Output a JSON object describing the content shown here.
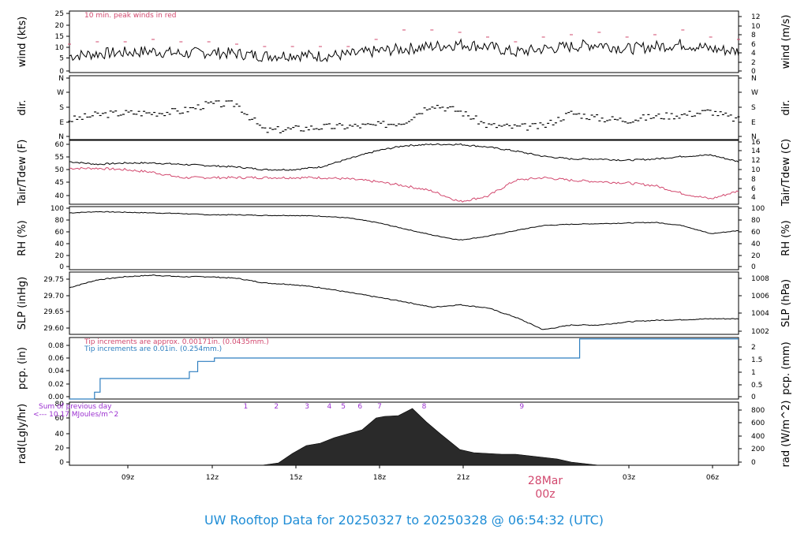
{
  "title": "UW Rooftop Data for 20250327  to  20250328 @ 06:54:32  (UTC)",
  "day_marker": {
    "date": "28Mar",
    "time": "00z"
  },
  "time_ticks": [
    "09z",
    "12z",
    "15z",
    "18z",
    "21z",
    "03z",
    "06z"
  ],
  "colors": {
    "title": "#1f8dd6",
    "day": "#d2486e",
    "peak": "#d2486e",
    "blue": "#2f7fc0",
    "purple": "#9b30d0",
    "line": "#000000"
  },
  "notes": {
    "peak": "10 min. peak winds in red",
    "tip_red": "Tip increments are approx. 0.00171in. (0.0435mm.)",
    "tip_blue": "Tip increments are 0.01in. (0.254mm.)",
    "sum_line1": "Sum of previous day",
    "sum_line2": "<--- 10.17 MJoules/m^2"
  },
  "panels": {
    "wind": {
      "left_label": "wind (kts)",
      "right_label": "wind (m/s)",
      "left_ticks": [
        "0",
        "5",
        "10",
        "15",
        "20",
        "25"
      ],
      "right_ticks": [
        "0",
        "2",
        "4",
        "6",
        "8",
        "10",
        "12"
      ]
    },
    "dir": {
      "left_label": "dir.",
      "right_label": "dir.",
      "left_ticks": [
        "N",
        "E",
        "S",
        "W",
        "N"
      ],
      "right_ticks": [
        "N",
        "E",
        "S",
        "W",
        "N"
      ]
    },
    "temp": {
      "left_label": "Tair/Tdew (F)",
      "right_label": "Tair/Tdew (C)",
      "left_ticks": [
        "40",
        "45",
        "50",
        "55",
        "60"
      ],
      "right_ticks": [
        "4",
        "6",
        "8",
        "10",
        "12",
        "14",
        "16"
      ]
    },
    "rh": {
      "left_label": "RH (%)",
      "right_label": "RH (%)",
      "left_ticks": [
        "0",
        "20",
        "40",
        "60",
        "80",
        "100"
      ],
      "right_ticks": [
        "0",
        "20",
        "40",
        "60",
        "80",
        "100"
      ]
    },
    "slp": {
      "left_label": "SLP (inHg)",
      "right_label": "SLP (hPa)",
      "left_ticks": [
        "29.60",
        "29.65",
        "29.70",
        "29.75"
      ],
      "right_ticks": [
        "1002",
        "1004",
        "1006",
        "1008"
      ]
    },
    "pcp": {
      "left_label": "pcp. (in)",
      "right_label": "pcp. (mm)",
      "left_ticks": [
        "0.00",
        "0.02",
        "0.04",
        "0.06",
        "0.08"
      ],
      "right_ticks": [
        "0",
        "0.5",
        "1",
        "1.5",
        "2"
      ]
    },
    "rad": {
      "left_label": "rad(Lgly/hr)",
      "right_label": "rad (W/m^2)",
      "left_ticks": [
        "0",
        "20",
        "40",
        "60",
        "80"
      ],
      "right_ticks": [
        "0",
        "200",
        "400",
        "600",
        "800"
      ],
      "markers": [
        "1",
        "2",
        "3",
        "4",
        "5",
        "6",
        "7",
        "8",
        "9"
      ]
    }
  },
  "chart_data": {
    "type": "line",
    "x_unit": "hours UTC since 2025-03-27 07:00",
    "x_range": [
      0,
      24
    ],
    "wind_kts": {
      "x": [
        0,
        1,
        2,
        3,
        4,
        5,
        6,
        7,
        8,
        9,
        10,
        11,
        12,
        13,
        14,
        15,
        16,
        17,
        18,
        19,
        20,
        21,
        22,
        23,
        24
      ],
      "y": [
        7,
        8,
        8.5,
        9,
        8,
        8.5,
        8,
        7,
        7.5,
        7,
        7.5,
        9,
        10,
        11,
        12,
        11,
        8.5,
        10,
        11,
        12,
        10,
        11,
        12,
        10,
        9
      ],
      "ylim": [
        0,
        26
      ]
    },
    "wind_peak_kts": {
      "x": [
        0,
        1,
        2,
        3,
        4,
        5,
        6,
        7,
        8,
        9,
        10,
        11,
        12,
        13,
        14,
        15,
        16,
        17,
        18,
        19,
        20,
        21,
        22,
        23,
        24
      ],
      "y": [
        12,
        13,
        13,
        14,
        13,
        13,
        12,
        11,
        11,
        11,
        11,
        14,
        18,
        18,
        17,
        15,
        13,
        15,
        16,
        17,
        15,
        16,
        18,
        15,
        14
      ]
    },
    "dir_deg": {
      "x": [
        0,
        1,
        2,
        3,
        4,
        5,
        6,
        7,
        8,
        9,
        10,
        11,
        12,
        13,
        14,
        15,
        16,
        17,
        18,
        19,
        20,
        21,
        22,
        23,
        24
      ],
      "y": [
        110,
        140,
        150,
        150,
        160,
        200,
        200,
        50,
        60,
        70,
        75,
        80,
        100,
        200,
        160,
        80,
        70,
        75,
        150,
        120,
        110,
        130,
        140,
        160,
        110
      ],
      "ylim": [
        0,
        360
      ]
    },
    "tair_f": {
      "x": [
        0,
        1,
        2,
        3,
        4,
        5,
        6,
        7,
        8,
        9,
        10,
        11,
        12,
        13,
        14,
        15,
        16,
        17,
        18,
        19,
        20,
        21,
        22,
        23,
        24
      ],
      "y": [
        53,
        52,
        52.5,
        52.5,
        52,
        51.5,
        51,
        50,
        50,
        51,
        54,
        57,
        59,
        59.5,
        59.5,
        58.5,
        57,
        55,
        54,
        54,
        53.5,
        54,
        55,
        55.5,
        53
      ],
      "ylim": [
        37,
        61
      ]
    },
    "tdew_f": {
      "x": [
        0,
        1,
        2,
        3,
        4,
        5,
        6,
        7,
        8,
        9,
        10,
        11,
        12,
        13,
        14,
        15,
        16,
        17,
        18,
        19,
        20,
        21,
        22,
        23,
        24
      ],
      "y": [
        50.5,
        50.5,
        50,
        49,
        47,
        47,
        47,
        47,
        47,
        47,
        46.5,
        45.5,
        44,
        42,
        38,
        40,
        46,
        47,
        46,
        45.5,
        45,
        44,
        41,
        39,
        42
      ]
    },
    "rh_pct": {
      "x": [
        0,
        1,
        2,
        3,
        4,
        5,
        6,
        7,
        8,
        9,
        10,
        11,
        12,
        13,
        14,
        15,
        16,
        17,
        18,
        19,
        20,
        21,
        22,
        23,
        24
      ],
      "y": [
        90,
        92,
        91,
        90,
        89,
        87,
        87,
        86,
        86,
        85,
        82,
        75,
        65,
        55,
        47,
        53,
        62,
        70,
        72,
        73,
        74,
        75,
        70,
        57,
        62
      ],
      "ylim": [
        0,
        100
      ]
    },
    "slp_inhg": {
      "x": [
        0,
        1,
        2,
        3,
        4,
        5,
        6,
        7,
        8,
        9,
        10,
        11,
        12,
        13,
        14,
        15,
        16,
        17,
        18,
        19,
        20,
        21,
        22,
        23,
        24
      ],
      "y": [
        29.735,
        29.76,
        29.77,
        29.775,
        29.77,
        29.77,
        29.765,
        29.75,
        29.745,
        29.735,
        29.72,
        29.705,
        29.69,
        29.672,
        29.68,
        29.67,
        29.64,
        29.6,
        29.615,
        29.615,
        29.625,
        29.63,
        29.632,
        29.635,
        29.635
      ],
      "ylim": [
        29.585,
        29.785
      ]
    },
    "pcp_in": {
      "x": [
        0,
        0.3,
        0.9,
        1.1,
        4.3,
        4.6,
        5.2,
        18.1,
        18.3,
        24
      ],
      "y": [
        0,
        0,
        0.01,
        0.03,
        0.04,
        0.055,
        0.06,
        0.06,
        0.088,
        0.088
      ],
      "ylim": [
        0,
        0.09
      ]
    },
    "rad_lgly": {
      "x": [
        0,
        6.9,
        7.5,
        8.0,
        8.5,
        9.0,
        9.5,
        10.0,
        10.5,
        11.0,
        11.3,
        11.8,
        12.3,
        12.8,
        13.3,
        14.0,
        14.5,
        15.0,
        15.5,
        16.0,
        16.5,
        17.0,
        17.5,
        18.0,
        18.5,
        19.0,
        24
      ],
      "y": [
        0,
        0,
        3,
        15,
        25,
        28,
        35,
        40,
        45,
        60,
        62,
        63,
        72,
        55,
        40,
        20,
        16,
        15,
        14,
        14,
        12,
        10,
        8,
        4,
        2,
        0,
        0
      ],
      "ylim": [
        0,
        80
      ]
    }
  }
}
